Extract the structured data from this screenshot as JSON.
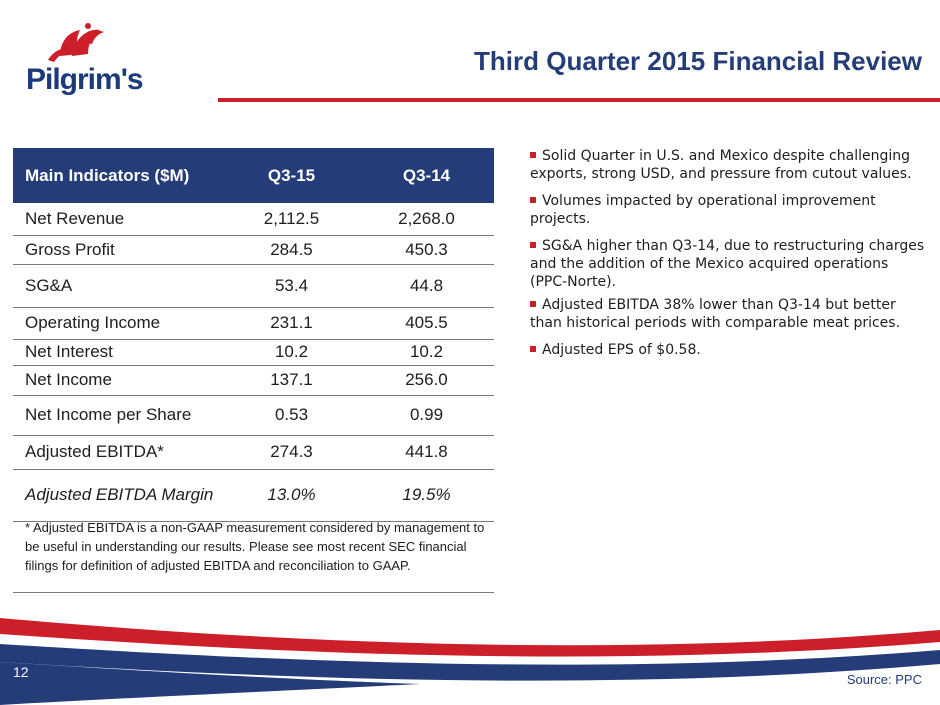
{
  "logo": {
    "text": "Pilgrim's"
  },
  "title": "Third Quarter 2015 Financial Review",
  "table": {
    "headers": [
      "Main Indicators ($M)",
      "Q3-15",
      "Q3-14"
    ],
    "rows": [
      {
        "label": "Net Revenue",
        "q3_15": "2,112.5",
        "q3_14": "2,268.0"
      },
      {
        "label": "Gross Profit",
        "q3_15": "284.5",
        "q3_14": "450.3"
      },
      {
        "label": "SG&A",
        "q3_15": "53.4",
        "q3_14": "44.8"
      },
      {
        "label": "Operating Income",
        "q3_15": "231.1",
        "q3_14": "405.5"
      },
      {
        "label": "Net Interest",
        "q3_15": "10.2",
        "q3_14": "10.2"
      },
      {
        "label": "Net Income",
        "q3_15": "137.1",
        "q3_14": "256.0"
      },
      {
        "label": "Net Income per Share",
        "q3_15": "0.53",
        "q3_14": "0.99"
      },
      {
        "label": "Adjusted EBITDA*",
        "q3_15": "274.3",
        "q3_14": "441.8"
      },
      {
        "label": "Adjusted EBITDA Margin",
        "q3_15": "13.0%",
        "q3_14": "19.5%"
      }
    ]
  },
  "footnote": "* Adjusted EBITDA is a non-GAAP measurement considered by management to be useful in understanding our results. Please see most recent SEC financial filings for definition of adjusted EBITDA and reconciliation to GAAP.",
  "bullets": [
    "Solid Quarter in U.S. and Mexico despite challenging exports, strong USD, and pressure from cutout values.",
    "Volumes impacted by operational improvement projects.",
    "SG&A higher than Q3-14, due to restructuring charges and the addition of the Mexico acquired operations (PPC-Norte).",
    "Adjusted EBITDA 38% lower than Q3-14 but better than historical periods with comparable meat prices.",
    "Adjusted EPS of $0.58."
  ],
  "page_number": "12",
  "source": "Source: PPC",
  "colors": {
    "navy": "#243c78",
    "red": "#cc1f2a"
  }
}
